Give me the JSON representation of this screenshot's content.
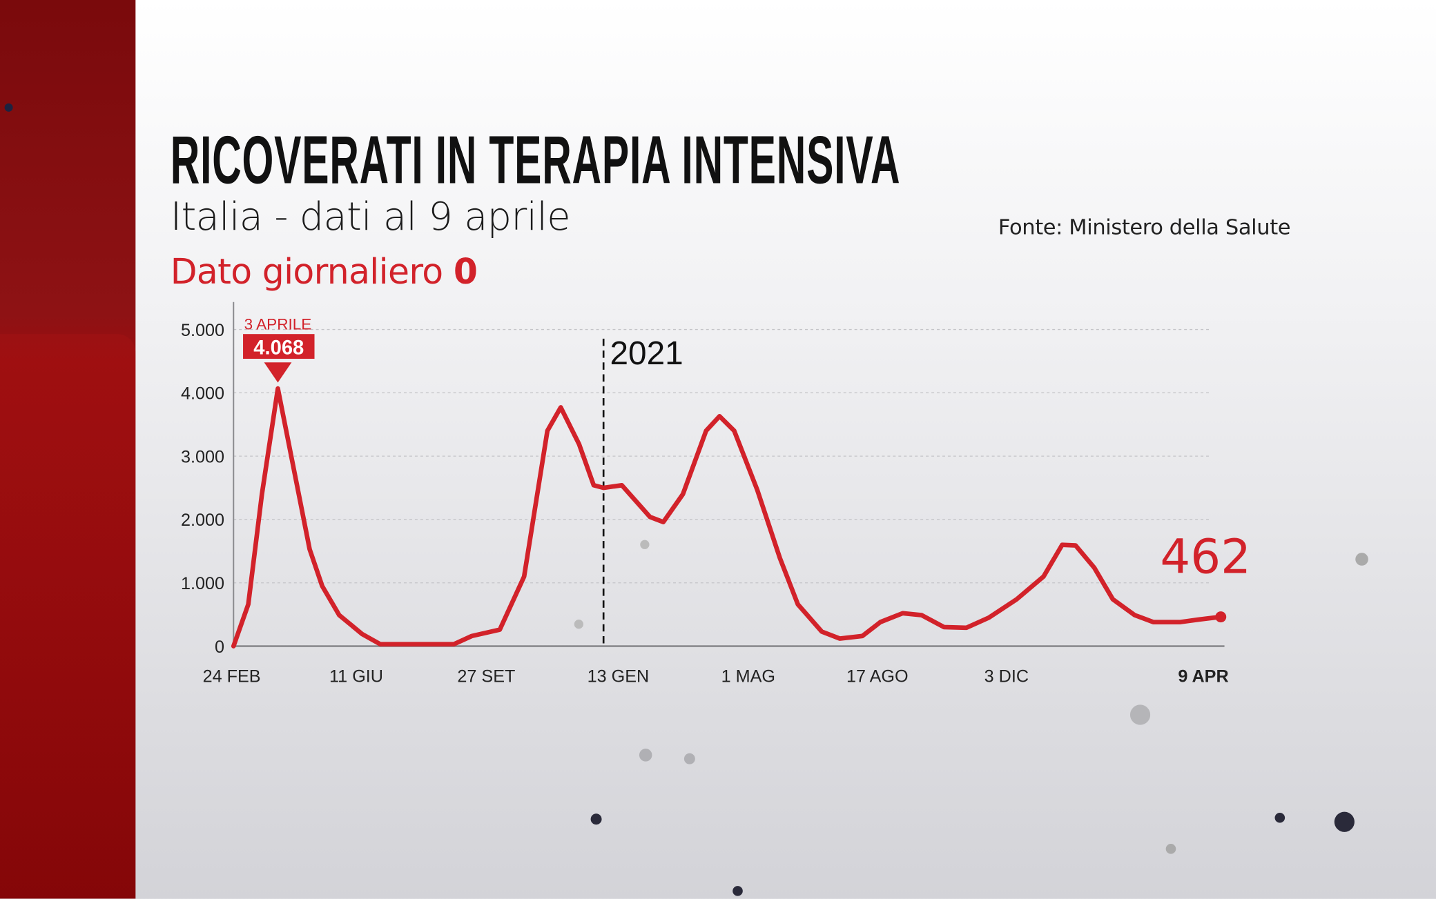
{
  "header": {
    "title": "RICOVERATI IN TERAPIA INTENSIVA",
    "subtitle": "Italia - dati al 9 aprile",
    "daily_label": "Dato giornaliero",
    "daily_value": "0",
    "source": "Fonte: Ministero della Salute"
  },
  "colors": {
    "accent": "#d2222a",
    "side_bar": "#8e1214",
    "text": "#111111"
  },
  "chart_data": {
    "type": "line",
    "title": "RICOVERATI IN TERAPIA INTENSIVA",
    "xlabel": "",
    "ylabel": "",
    "ylim": [
      0,
      5000
    ],
    "grid": true,
    "y_ticks": [
      {
        "value": 0,
        "label": "0"
      },
      {
        "value": 1000,
        "label": "1.000"
      },
      {
        "value": 2000,
        "label": "2.000"
      },
      {
        "value": 3000,
        "label": "3.000"
      },
      {
        "value": 4000,
        "label": "4.000"
      },
      {
        "value": 5000,
        "label": "5.000"
      }
    ],
    "x_ticks": [
      {
        "date": "2020-02-24",
        "label": "24 FEB"
      },
      {
        "date": "2020-06-11",
        "label": "11 GIU"
      },
      {
        "date": "2020-09-27",
        "label": "27 SET"
      },
      {
        "date": "2021-01-13",
        "label": "13 GEN"
      },
      {
        "date": "2021-05-01",
        "label": "1 MAG"
      },
      {
        "date": "2021-08-17",
        "label": "17 AGO"
      },
      {
        "date": "2021-12-03",
        "label": "3 DIC"
      },
      {
        "date": "2022-04-09",
        "label": "9 APR",
        "bold": true
      }
    ],
    "series": [
      {
        "color": "#d2222a",
        "points": [
          [
            "2020-02-24",
            0
          ],
          [
            "2020-03-08",
            660
          ],
          [
            "2020-03-20",
            2400
          ],
          [
            "2020-04-03",
            4068
          ],
          [
            "2020-04-15",
            2980
          ],
          [
            "2020-05-01",
            1530
          ],
          [
            "2020-05-12",
            950
          ],
          [
            "2020-05-27",
            490
          ],
          [
            "2020-06-16",
            190
          ],
          [
            "2020-07-01",
            30
          ],
          [
            "2020-08-31",
            30
          ],
          [
            "2020-09-15",
            160
          ],
          [
            "2020-10-08",
            260
          ],
          [
            "2020-10-28",
            1100
          ],
          [
            "2020-11-16",
            3400
          ],
          [
            "2020-11-27",
            3770
          ],
          [
            "2020-12-12",
            3190
          ],
          [
            "2020-12-24",
            2540
          ],
          [
            "2021-01-01",
            2500
          ],
          [
            "2021-01-16",
            2540
          ],
          [
            "2021-02-08",
            2040
          ],
          [
            "2021-02-19",
            1960
          ],
          [
            "2021-03-07",
            2400
          ],
          [
            "2021-03-26",
            3400
          ],
          [
            "2021-04-06",
            3630
          ],
          [
            "2021-04-18",
            3400
          ],
          [
            "2021-05-07",
            2470
          ],
          [
            "2021-05-26",
            1390
          ],
          [
            "2021-06-10",
            660
          ],
          [
            "2021-06-30",
            230
          ],
          [
            "2021-07-15",
            120
          ],
          [
            "2021-08-03",
            160
          ],
          [
            "2021-08-18",
            380
          ],
          [
            "2021-09-06",
            520
          ],
          [
            "2021-09-22",
            490
          ],
          [
            "2021-10-11",
            300
          ],
          [
            "2021-10-30",
            290
          ],
          [
            "2021-11-18",
            450
          ],
          [
            "2021-12-09",
            740
          ],
          [
            "2021-12-25",
            1100
          ],
          [
            "2022-01-05",
            1600
          ],
          [
            "2022-01-13",
            1590
          ],
          [
            "2022-01-24",
            1240
          ],
          [
            "2022-02-04",
            740
          ],
          [
            "2022-02-17",
            490
          ],
          [
            "2022-02-28",
            380
          ],
          [
            "2022-03-16",
            380
          ],
          [
            "2022-03-27",
            420
          ],
          [
            "2022-04-09",
            462
          ]
        ]
      }
    ],
    "annotations": {
      "peak": {
        "date": "2020-04-03",
        "date_label": "3 APRILE",
        "value_label": "4.068",
        "value": 4068
      },
      "year_marker": {
        "date": "2021-01-01",
        "label": "2021"
      },
      "last_value": {
        "date": "2022-04-09",
        "label": "462",
        "value": 462
      }
    }
  }
}
